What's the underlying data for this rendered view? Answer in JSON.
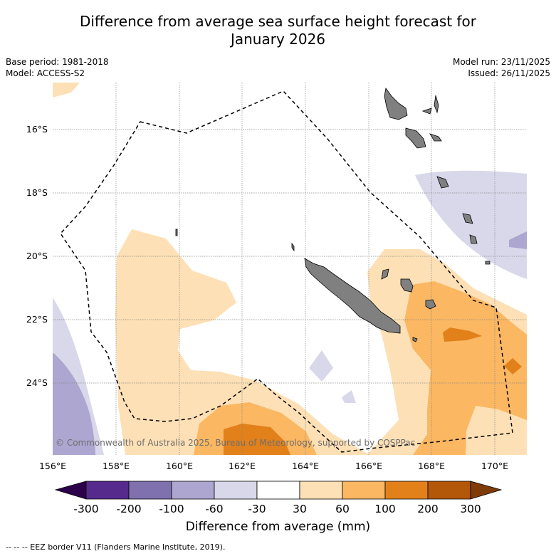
{
  "title_line1": "Difference from average sea surface height forecast for",
  "title_line2": "January 2026",
  "meta_left": {
    "base_period": "Base period: 1981-2018",
    "model": "Model: ACCESS-S2"
  },
  "meta_right": {
    "model_run": "Model run: 23/11/2025",
    "issued": "Issued: 26/11/2025"
  },
  "lat_labels": [
    "16°S",
    "18°S",
    "20°S",
    "22°S",
    "24°S"
  ],
  "lon_labels": [
    "156°E",
    "158°E",
    "160°E",
    "162°E",
    "164°E",
    "166°E",
    "168°E",
    "170°E"
  ],
  "copyright": "© Commonwealth of Australia 2025, Bureau of Meteorology, supported by COSPPac",
  "colorbar": {
    "ticks": [
      "-300",
      "-200",
      "-100",
      "-60",
      "-30",
      "30",
      "60",
      "100",
      "200",
      "300"
    ],
    "colors": [
      "#562a8c",
      "#7f70ae",
      "#aca6d0",
      "#d9d8ea",
      "#ffffff",
      "#fde0b5",
      "#fbb762",
      "#e2801a",
      "#b35709"
    ],
    "under_color": "#2d004b",
    "over_color": "#7f3b08",
    "label": "Difference from average (mm)"
  },
  "footnote": "-- -- -- EEZ border V11 (Flanders Marine Institute, 2019).",
  "colors": {
    "land": "#808080",
    "eez": "#000000",
    "grid": "#888888"
  }
}
